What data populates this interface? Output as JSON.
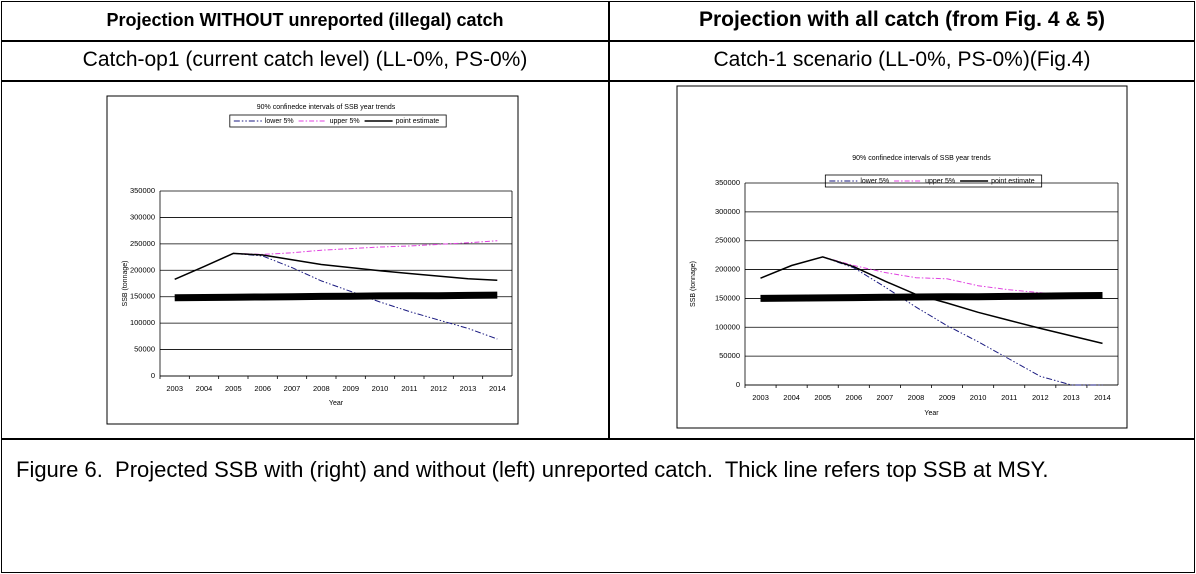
{
  "table": {
    "headers": [
      "Projection WITHOUT unreported (illegal) catch",
      "Projection with all catch (from Fig. 4 & 5)"
    ],
    "subheaders": [
      "Catch-op1 (current catch level) (LL-0%, PS-0%)",
      "Catch-1 scenario (LL-0%, PS-0%)(Fig.4)"
    ]
  },
  "chart_data": [
    {
      "type": "line",
      "title": "90% confinedce intervals of SSB year trends",
      "x_label": "Year",
      "y_label": "SSB (tonnage)",
      "categories": [
        2003,
        2004,
        2005,
        2006,
        2007,
        2008,
        2009,
        2010,
        2011,
        2012,
        2013,
        2014
      ],
      "ylim": [
        0,
        350000
      ],
      "yticks": [
        0,
        50000,
        100000,
        150000,
        200000,
        250000,
        300000,
        350000
      ],
      "grid": true,
      "series": [
        {
          "name": "lower 5%",
          "color": "#1a1a80",
          "dashed": true,
          "values": [
            null,
            null,
            232000,
            227000,
            205000,
            180000,
            160000,
            140000,
            122000,
            106000,
            90000,
            70000
          ]
        },
        {
          "name": "upper 5%",
          "color": "#e040e0",
          "dashed": true,
          "values": [
            null,
            null,
            232000,
            230000,
            233000,
            238000,
            241000,
            244000,
            246000,
            249000,
            252000,
            256000
          ]
        },
        {
          "name": "point estimate",
          "color": "#000000",
          "values": [
            183000,
            207000,
            232000,
            229000,
            220000,
            211000,
            205000,
            199000,
            194000,
            189000,
            184000,
            181000
          ]
        },
        {
          "color": "#000000",
          "values": [
            148000,
            148500,
            149000,
            149500,
            150000,
            150500,
            151000,
            151500,
            152000,
            152000,
            152500,
            153000
          ]
        }
      ]
    },
    {
      "type": "line",
      "title": "90% confinedce intervals of SSB year trends",
      "x_label": "Year",
      "y_label": "SSB (tonnage)",
      "categories": [
        2003,
        2004,
        2005,
        2006,
        2007,
        2008,
        2009,
        2010,
        2011,
        2012,
        2013,
        2014
      ],
      "ylim": [
        0,
        350000
      ],
      "yticks": [
        0,
        50000,
        100000,
        150000,
        200000,
        250000,
        300000,
        350000
      ],
      "grid": true,
      "series": [
        {
          "name": "lower 5%",
          "color": "#1a1a80",
          "dashed": true,
          "values": [
            null,
            null,
            222000,
            203000,
            170000,
            135000,
            103000,
            75000,
            45000,
            15000,
            0,
            0
          ]
        },
        {
          "name": "upper 5%",
          "color": "#e040e0",
          "dashed": true,
          "values": [
            null,
            null,
            222000,
            207000,
            195000,
            186000,
            184000,
            172000,
            165000,
            160000,
            155000,
            152000
          ]
        },
        {
          "name": "point estimate",
          "color": "#000000",
          "values": [
            185000,
            207000,
            222000,
            205000,
            180000,
            157000,
            142000,
            126000,
            112000,
            98000,
            85000,
            72000
          ]
        },
        {
          "color": "#000000",
          "values": [
            150000,
            150500,
            151000,
            151500,
            152000,
            152500,
            153000,
            153000,
            153500,
            154000,
            154500,
            155000
          ]
        }
      ]
    }
  ],
  "caption": "Figure 6.  Projected SSB with (right) and without (left) unreported catch.  Thick line refers top SSB at MSY."
}
